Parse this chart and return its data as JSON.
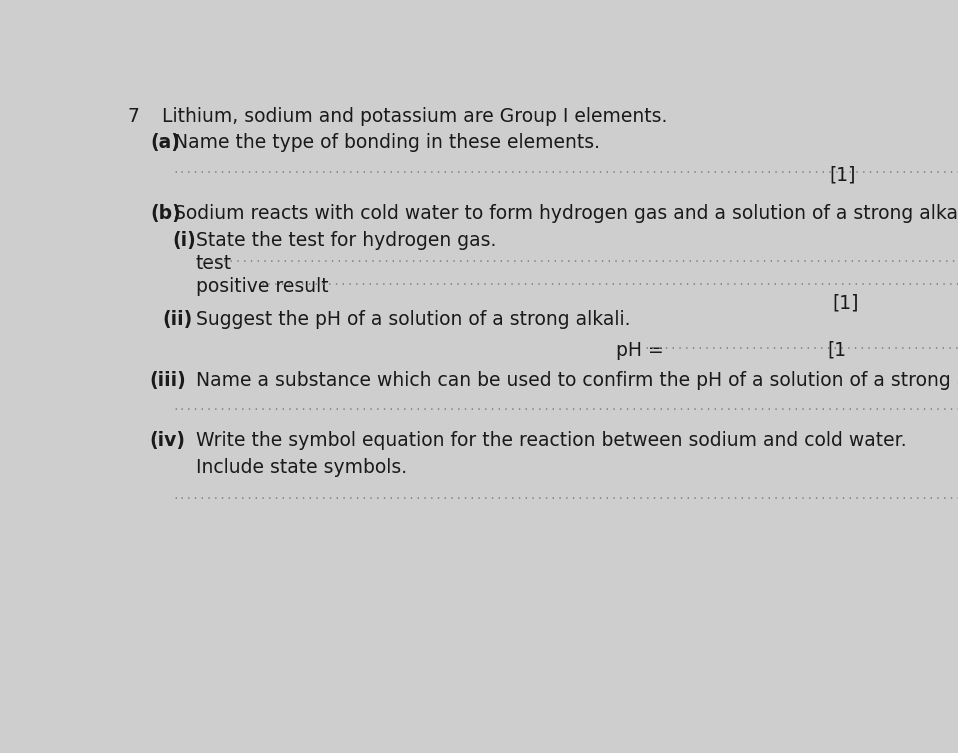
{
  "background_color": "#cecece",
  "text_color": "#1a1a1a",
  "dot_color": "#888888",
  "question_number": "7",
  "intro_text": "Lithium, sodium and potassium are Group I elements.",
  "part_a_label": "(a)",
  "part_a_text": "Name the type of bonding in these elements.",
  "part_a_mark": "[1]",
  "part_b_label": "(b)",
  "part_b_text": "Sodium reacts with cold water to form hydrogen gas and a solution of a strong alkali.",
  "part_bi_label": "(i)",
  "part_bi_text": "State the test for hydrogen gas.",
  "part_bi_test_label": "test",
  "part_bi_positive_label": "positive result",
  "part_bi_mark": "[1]",
  "part_bii_label": "(ii)",
  "part_bii_text": "Suggest the pH of a solution of a strong alkali.",
  "part_bii_answer": "pH = ",
  "part_bii_mark": "[1",
  "part_biii_label": "(iii)",
  "part_biii_text": "Name a substance which can be used to confirm the pH of a solution of a strong alkali.",
  "part_biv_label": "(iv)",
  "part_biv_text": "Write the symbol equation for the reaction between sodium and cold water.",
  "part_biv_subtext": "Include state symbols.",
  "font_size_main": 13.5,
  "font_size_label": 13.5,
  "font_size_dots": 8
}
